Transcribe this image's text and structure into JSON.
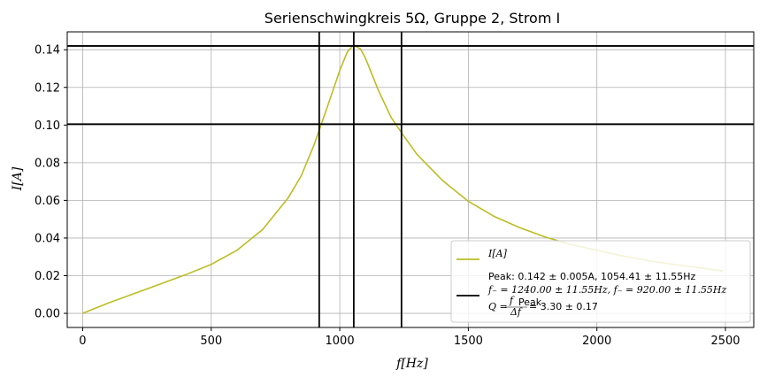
{
  "chart_data": {
    "type": "line",
    "title": "Serienschwingkreis 5Ω, Gruppe 2, Strom I",
    "xlabel": "f[Hz]",
    "ylabel": "I[A]",
    "xlim": [
      -60,
      2610
    ],
    "ylim": [
      -0.0075,
      0.1495
    ],
    "xticks": [
      0,
      500,
      1000,
      1500,
      2000,
      2500
    ],
    "yticks": [
      0.0,
      0.02,
      0.04,
      0.06,
      0.08,
      0.1,
      0.12,
      0.14
    ],
    "xtick_labels": [
      "0",
      "500",
      "1000",
      "1500",
      "2000",
      "2500"
    ],
    "ytick_labels": [
      "0.00",
      "0.02",
      "0.04",
      "0.06",
      "0.08",
      "0.10",
      "0.12",
      "0.14"
    ],
    "grid": true,
    "legend_position": "bottom-right",
    "series": [
      {
        "name": "I[A]",
        "color": "#bcbd22",
        "x": [
          0,
          100,
          200,
          300,
          400,
          500,
          600,
          700,
          800,
          850,
          900,
          950,
          1000,
          1030,
          1054,
          1080,
          1100,
          1150,
          1200,
          1250,
          1300,
          1400,
          1500,
          1600,
          1700,
          1800,
          1900,
          2000,
          2100,
          2200,
          2300,
          2400,
          2490
        ],
        "y": [
          0.0,
          0.0055,
          0.0105,
          0.0155,
          0.0205,
          0.026,
          0.0335,
          0.0445,
          0.0615,
          0.073,
          0.0895,
          0.109,
          0.129,
          0.139,
          0.1425,
          0.1405,
          0.1355,
          0.1185,
          0.104,
          0.094,
          0.0845,
          0.0705,
          0.0595,
          0.0515,
          0.0455,
          0.0405,
          0.0365,
          0.0335,
          0.0305,
          0.028,
          0.026,
          0.0242,
          0.0225
        ]
      }
    ],
    "reference_lines": {
      "name": "Peak: 0.142 ± 0.005A, 1054.41 ± 11.55Hz | f₋ = 1240.00 ± 11.55Hz, f₋ = 920.00 ± 11.55Hz | Q = f_peak/Δf = 3.30 ± 0.17",
      "color": "#000000",
      "horizontal": [
        0.142,
        0.1005
      ],
      "vertical": [
        920,
        1054.41,
        1240
      ]
    },
    "legend": {
      "entry1": "I[A]",
      "entry2_line1": "Peak: 0.142 ± 0.005A, 1054.41 ± 11.55Hz",
      "entry2_line2": "f₋ = 1240.00 ± 11.55Hz, f₋ = 920.00 ± 11.55Hz",
      "entry2_line3_prefix": "Q = ",
      "entry2_frac_num": "f",
      "entry2_frac_num_sub": "Peak",
      "entry2_frac_den": "Δf",
      "entry2_line3_suffix": " = 3.30 ± 0.17"
    }
  }
}
